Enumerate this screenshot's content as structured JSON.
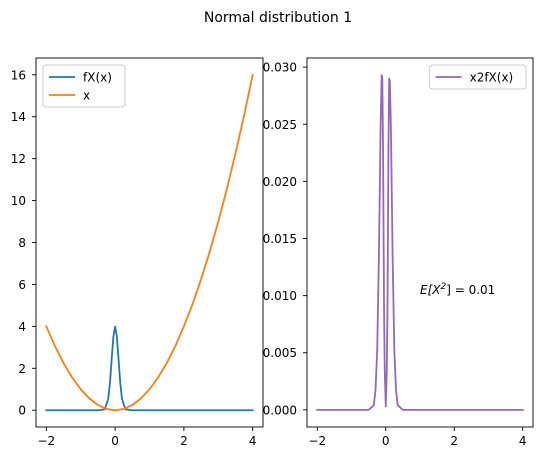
{
  "figure": {
    "title": "Normal distribution 1"
  },
  "chart_data": [
    {
      "type": "line",
      "title": "",
      "xlabel": "",
      "ylabel": "",
      "xlim": [
        -2.3,
        4.3
      ],
      "ylim": [
        -0.8,
        16.8
      ],
      "xticks": [
        -2,
        0,
        2,
        4
      ],
      "xtick_labels": [
        "−2",
        "0",
        "2",
        "4"
      ],
      "yticks": [
        0,
        2,
        4,
        6,
        8,
        10,
        12,
        14,
        16
      ],
      "ytick_labels": [
        "0",
        "2",
        "4",
        "6",
        "8",
        "10",
        "12",
        "14",
        "16"
      ],
      "grid": false,
      "legend_position": "upper left",
      "series": [
        {
          "name": "fX(x)",
          "color": "#1f77b4",
          "x": [
            -2.0,
            -1.0,
            -0.5,
            -0.3,
            -0.2,
            -0.15,
            -0.1,
            -0.05,
            0.0,
            0.05,
            0.1,
            0.15,
            0.2,
            0.3,
            0.5,
            1.0,
            2.0,
            3.0,
            4.0
          ],
          "y": [
            0.0,
            0.0,
            0.0,
            0.04,
            0.54,
            1.3,
            2.42,
            3.52,
            3.99,
            3.52,
            2.42,
            1.3,
            0.54,
            0.04,
            0.0,
            0.0,
            0.0,
            0.0,
            0.0
          ]
        },
        {
          "name": "x",
          "color": "#ff7f0e",
          "x": [
            -2.0,
            -1.75,
            -1.5,
            -1.25,
            -1.0,
            -0.75,
            -0.5,
            -0.25,
            0.0,
            0.25,
            0.5,
            0.75,
            1.0,
            1.25,
            1.5,
            1.75,
            2.0,
            2.25,
            2.5,
            2.75,
            3.0,
            3.25,
            3.5,
            3.75,
            4.0
          ],
          "y": [
            4.0,
            3.06,
            2.25,
            1.56,
            1.0,
            0.56,
            0.25,
            0.06,
            0.0,
            0.06,
            0.25,
            0.56,
            1.0,
            1.56,
            2.25,
            3.06,
            4.0,
            5.06,
            6.25,
            7.56,
            9.0,
            10.56,
            12.25,
            14.06,
            16.0
          ]
        }
      ]
    },
    {
      "type": "line",
      "title": "",
      "xlabel": "",
      "ylabel": "",
      "xlim": [
        -2.3,
        4.3
      ],
      "ylim": [
        -0.0015,
        0.0308
      ],
      "xticks": [
        -2,
        0,
        2,
        4
      ],
      "xtick_labels": [
        "−2",
        "0",
        "2",
        "4"
      ],
      "yticks": [
        0.0,
        0.005,
        0.01,
        0.015,
        0.02,
        0.025,
        0.03
      ],
      "ytick_labels": [
        "0.000",
        "0.005",
        "0.010",
        "0.015",
        "0.020",
        "0.025",
        "0.030"
      ],
      "grid": false,
      "legend_position": "upper right",
      "annotation": {
        "text_prefix": "E[X",
        "text_sup": "2",
        "text_suffix": "] = 0.01",
        "x": 1.0,
        "y": 0.0105
      },
      "series": [
        {
          "name": "x2fX(x)",
          "color": "#9467bd",
          "x": [
            -2.0,
            -0.5,
            -0.35,
            -0.3,
            -0.25,
            -0.2,
            -0.15,
            -0.12,
            -0.1,
            -0.08,
            -0.05,
            -0.03,
            0.0,
            0.03,
            0.05,
            0.08,
            0.1,
            0.12,
            0.15,
            0.2,
            0.25,
            0.3,
            0.35,
            0.5,
            4.0
          ],
          "y": [
            0.0,
            0.0,
            0.0004,
            0.0017,
            0.0052,
            0.0135,
            0.0248,
            0.0293,
            0.0291,
            0.0233,
            0.0088,
            0.0035,
            0.0003,
            0.0035,
            0.0088,
            0.0233,
            0.029,
            0.0287,
            0.0248,
            0.0135,
            0.0052,
            0.0017,
            0.0004,
            0.0,
            0.0
          ]
        }
      ]
    }
  ]
}
